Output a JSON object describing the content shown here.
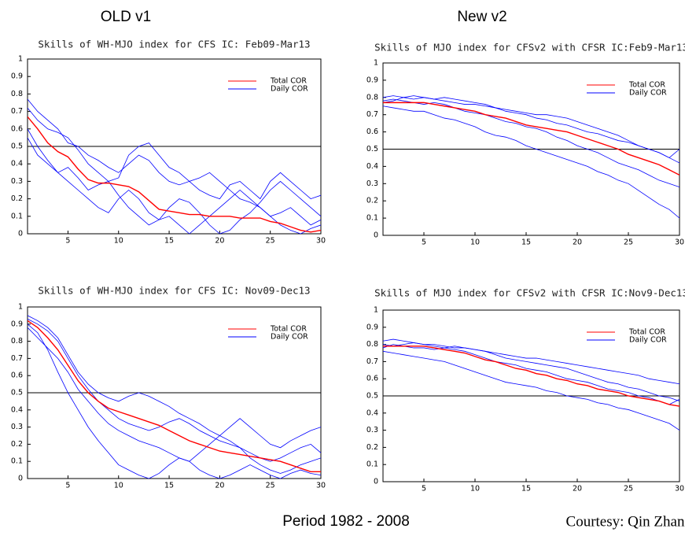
{
  "labels": {
    "left": "OLD v1",
    "right": "New v2",
    "period": "Period 1982 - 2008",
    "courtesy": "Courtesy: Qin Zhan"
  },
  "chart_data": [
    {
      "type": "line",
      "title": "Skills of WH-MJO index for CFS IC: Feb09-Mar13",
      "x": [
        1,
        2,
        3,
        4,
        5,
        6,
        7,
        8,
        9,
        10,
        11,
        12,
        13,
        14,
        15,
        16,
        17,
        18,
        19,
        20,
        21,
        22,
        23,
        24,
        25,
        26,
        27,
        28,
        29,
        30
      ],
      "xlim": [
        1,
        30
      ],
      "xticks": [
        5,
        10,
        15,
        20,
        25,
        30
      ],
      "ylim": [
        0,
        1
      ],
      "yticks": [
        0,
        0.1,
        0.2,
        0.3,
        0.4,
        0.5,
        0.6,
        0.7,
        0.8,
        0.9,
        1
      ],
      "reference_line": 0.5,
      "series": [
        {
          "name": "Total COR",
          "color": "#ff0000",
          "values": [
            0.67,
            0.6,
            0.52,
            0.47,
            0.44,
            0.37,
            0.31,
            0.29,
            0.29,
            0.28,
            0.27,
            0.24,
            0.19,
            0.14,
            0.13,
            0.12,
            0.11,
            0.11,
            0.1,
            0.1,
            0.1,
            0.09,
            0.09,
            0.09,
            0.07,
            0.06,
            0.04,
            0.02,
            0.01,
            0.02
          ]
        },
        {
          "name": "Daily COR",
          "color": "#0000ff",
          "values": [
            0.77,
            0.7,
            0.65,
            0.6,
            0.52,
            0.5,
            0.45,
            0.42,
            0.38,
            0.35,
            0.4,
            0.45,
            0.42,
            0.35,
            0.3,
            0.28,
            0.3,
            0.25,
            0.22,
            0.2,
            0.28,
            0.3,
            0.25,
            0.2,
            0.3,
            0.35,
            0.3,
            0.25,
            0.2,
            0.22
          ]
        },
        {
          "name": "Daily COR",
          "color": "#0000ff",
          "values": [
            0.6,
            0.5,
            0.42,
            0.35,
            0.3,
            0.25,
            0.2,
            0.15,
            0.12,
            0.2,
            0.25,
            0.2,
            0.12,
            0.08,
            0.1,
            0.05,
            0.0,
            0.05,
            0.1,
            0.15,
            0.2,
            0.25,
            0.2,
            0.15,
            0.1,
            0.05,
            0.02,
            0.0,
            0.03,
            0.05
          ]
        },
        {
          "name": "Daily COR",
          "color": "#0000ff",
          "values": [
            0.72,
            0.65,
            0.6,
            0.58,
            0.55,
            0.48,
            0.4,
            0.35,
            0.3,
            0.32,
            0.45,
            0.5,
            0.52,
            0.45,
            0.38,
            0.35,
            0.3,
            0.32,
            0.35,
            0.3,
            0.25,
            0.2,
            0.18,
            0.15,
            0.1,
            0.12,
            0.15,
            0.1,
            0.05,
            0.08
          ]
        },
        {
          "name": "Daily COR",
          "color": "#0000ff",
          "values": [
            0.55,
            0.45,
            0.4,
            0.35,
            0.38,
            0.32,
            0.25,
            0.28,
            0.3,
            0.22,
            0.15,
            0.1,
            0.05,
            0.08,
            0.15,
            0.2,
            0.18,
            0.12,
            0.05,
            0.0,
            0.02,
            0.08,
            0.12,
            0.18,
            0.25,
            0.3,
            0.25,
            0.2,
            0.15,
            0.1
          ]
        }
      ]
    },
    {
      "type": "line",
      "title": "Skills of MJO index for CFSv2 with CFSR IC:Feb9-Mar13",
      "x": [
        1,
        2,
        3,
        4,
        5,
        6,
        7,
        8,
        9,
        10,
        11,
        12,
        13,
        14,
        15,
        16,
        17,
        18,
        19,
        20,
        21,
        22,
        23,
        24,
        25,
        26,
        27,
        28,
        29,
        30
      ],
      "xlim": [
        1,
        30
      ],
      "xticks": [
        5,
        10,
        15,
        20,
        25,
        30
      ],
      "ylim": [
        0,
        1
      ],
      "yticks": [
        0,
        0.1,
        0.2,
        0.3,
        0.4,
        0.5,
        0.6,
        0.7,
        0.8,
        0.9,
        1
      ],
      "reference_line": 0.5,
      "series": [
        {
          "name": "Total COR",
          "color": "#ff0000",
          "values": [
            0.77,
            0.77,
            0.77,
            0.77,
            0.77,
            0.76,
            0.75,
            0.74,
            0.73,
            0.72,
            0.7,
            0.69,
            0.68,
            0.66,
            0.64,
            0.63,
            0.62,
            0.61,
            0.6,
            0.58,
            0.56,
            0.54,
            0.52,
            0.5,
            0.47,
            0.45,
            0.43,
            0.41,
            0.38,
            0.35
          ]
        },
        {
          "name": "Daily COR",
          "color": "#0000ff",
          "values": [
            0.8,
            0.81,
            0.8,
            0.79,
            0.8,
            0.79,
            0.78,
            0.77,
            0.76,
            0.76,
            0.75,
            0.74,
            0.73,
            0.72,
            0.71,
            0.7,
            0.7,
            0.69,
            0.68,
            0.66,
            0.64,
            0.62,
            0.6,
            0.58,
            0.55,
            0.52,
            0.5,
            0.48,
            0.45,
            0.42
          ]
        },
        {
          "name": "Daily COR",
          "color": "#0000ff",
          "values": [
            0.75,
            0.74,
            0.73,
            0.72,
            0.72,
            0.7,
            0.68,
            0.67,
            0.65,
            0.63,
            0.6,
            0.58,
            0.57,
            0.55,
            0.52,
            0.5,
            0.48,
            0.46,
            0.44,
            0.42,
            0.4,
            0.37,
            0.35,
            0.32,
            0.3,
            0.26,
            0.22,
            0.18,
            0.15,
            0.1
          ]
        },
        {
          "name": "Daily COR",
          "color": "#0000ff",
          "values": [
            0.78,
            0.79,
            0.78,
            0.77,
            0.76,
            0.77,
            0.76,
            0.74,
            0.72,
            0.71,
            0.7,
            0.68,
            0.66,
            0.65,
            0.63,
            0.62,
            0.6,
            0.57,
            0.55,
            0.52,
            0.5,
            0.48,
            0.45,
            0.42,
            0.4,
            0.38,
            0.35,
            0.32,
            0.3,
            0.28
          ]
        },
        {
          "name": "Daily COR",
          "color": "#0000ff",
          "values": [
            0.77,
            0.78,
            0.8,
            0.81,
            0.8,
            0.79,
            0.8,
            0.79,
            0.78,
            0.77,
            0.76,
            0.74,
            0.72,
            0.71,
            0.7,
            0.68,
            0.67,
            0.65,
            0.64,
            0.62,
            0.6,
            0.59,
            0.57,
            0.55,
            0.54,
            0.52,
            0.5,
            0.48,
            0.45,
            0.5
          ]
        }
      ]
    },
    {
      "type": "line",
      "title": "Skills of WH-MJO index for CFS IC: Nov09-Dec13",
      "x": [
        1,
        2,
        3,
        4,
        5,
        6,
        7,
        8,
        9,
        10,
        11,
        12,
        13,
        14,
        15,
        16,
        17,
        18,
        19,
        20,
        21,
        22,
        23,
        24,
        25,
        26,
        27,
        28,
        29,
        30
      ],
      "xlim": [
        1,
        30
      ],
      "xticks": [
        5,
        10,
        15,
        20,
        25,
        30
      ],
      "ylim": [
        0,
        1
      ],
      "yticks": [
        0,
        0.1,
        0.2,
        0.3,
        0.4,
        0.5,
        0.6,
        0.7,
        0.8,
        0.9,
        1
      ],
      "reference_line": 0.5,
      "series": [
        {
          "name": "Total COR",
          "color": "#ff0000",
          "values": [
            0.92,
            0.88,
            0.82,
            0.75,
            0.66,
            0.57,
            0.5,
            0.45,
            0.41,
            0.39,
            0.37,
            0.35,
            0.33,
            0.31,
            0.28,
            0.25,
            0.22,
            0.2,
            0.18,
            0.16,
            0.15,
            0.14,
            0.13,
            0.12,
            0.11,
            0.1,
            0.08,
            0.06,
            0.04,
            0.04
          ]
        },
        {
          "name": "Daily COR",
          "color": "#0000ff",
          "values": [
            0.95,
            0.92,
            0.88,
            0.82,
            0.72,
            0.62,
            0.55,
            0.5,
            0.47,
            0.45,
            0.48,
            0.5,
            0.48,
            0.45,
            0.42,
            0.38,
            0.35,
            0.32,
            0.28,
            0.25,
            0.3,
            0.35,
            0.3,
            0.25,
            0.2,
            0.18,
            0.22,
            0.25,
            0.28,
            0.3
          ]
        },
        {
          "name": "Daily COR",
          "color": "#0000ff",
          "values": [
            0.9,
            0.85,
            0.75,
            0.62,
            0.5,
            0.4,
            0.3,
            0.22,
            0.15,
            0.08,
            0.05,
            0.02,
            0.0,
            0.03,
            0.08,
            0.12,
            0.1,
            0.05,
            0.02,
            0.0,
            0.02,
            0.05,
            0.08,
            0.05,
            0.02,
            0.0,
            0.03,
            0.05,
            0.03,
            0.02
          ]
        },
        {
          "name": "Daily COR",
          "color": "#0000ff",
          "values": [
            0.93,
            0.9,
            0.86,
            0.8,
            0.7,
            0.6,
            0.52,
            0.45,
            0.4,
            0.35,
            0.32,
            0.3,
            0.28,
            0.3,
            0.33,
            0.35,
            0.32,
            0.28,
            0.25,
            0.22,
            0.2,
            0.18,
            0.15,
            0.12,
            0.1,
            0.12,
            0.15,
            0.18,
            0.2,
            0.15
          ]
        },
        {
          "name": "Daily COR",
          "color": "#0000ff",
          "values": [
            0.88,
            0.82,
            0.76,
            0.7,
            0.62,
            0.52,
            0.45,
            0.38,
            0.32,
            0.28,
            0.25,
            0.22,
            0.2,
            0.18,
            0.15,
            0.12,
            0.1,
            0.15,
            0.2,
            0.25,
            0.22,
            0.18,
            0.12,
            0.08,
            0.05,
            0.03,
            0.05,
            0.08,
            0.1,
            0.12
          ]
        }
      ]
    },
    {
      "type": "line",
      "title": "Skills of MJO index for CFSv2 with CFSR IC:Nov9-Dec13",
      "x": [
        1,
        2,
        3,
        4,
        5,
        6,
        7,
        8,
        9,
        10,
        11,
        12,
        13,
        14,
        15,
        16,
        17,
        18,
        19,
        20,
        21,
        22,
        23,
        24,
        25,
        26,
        27,
        28,
        29,
        30
      ],
      "xlim": [
        1,
        30
      ],
      "xticks": [
        5,
        10,
        15,
        20,
        25,
        30
      ],
      "ylim": [
        0,
        1
      ],
      "yticks": [
        0,
        0.1,
        0.2,
        0.3,
        0.4,
        0.5,
        0.6,
        0.7,
        0.8,
        0.9,
        1
      ],
      "reference_line": 0.5,
      "series": [
        {
          "name": "Total COR",
          "color": "#ff0000",
          "values": [
            0.79,
            0.79,
            0.79,
            0.79,
            0.79,
            0.78,
            0.77,
            0.76,
            0.75,
            0.73,
            0.71,
            0.7,
            0.68,
            0.66,
            0.65,
            0.63,
            0.62,
            0.6,
            0.59,
            0.57,
            0.56,
            0.54,
            0.53,
            0.52,
            0.5,
            0.49,
            0.48,
            0.47,
            0.45,
            0.44
          ]
        },
        {
          "name": "Daily COR",
          "color": "#0000ff",
          "values": [
            0.82,
            0.83,
            0.82,
            0.81,
            0.8,
            0.8,
            0.79,
            0.78,
            0.78,
            0.77,
            0.76,
            0.75,
            0.74,
            0.73,
            0.72,
            0.72,
            0.71,
            0.7,
            0.69,
            0.68,
            0.67,
            0.66,
            0.65,
            0.64,
            0.63,
            0.62,
            0.6,
            0.59,
            0.58,
            0.57
          ]
        },
        {
          "name": "Daily COR",
          "color": "#0000ff",
          "values": [
            0.76,
            0.75,
            0.74,
            0.73,
            0.72,
            0.71,
            0.7,
            0.68,
            0.66,
            0.64,
            0.62,
            0.6,
            0.58,
            0.57,
            0.56,
            0.55,
            0.53,
            0.52,
            0.5,
            0.49,
            0.48,
            0.46,
            0.45,
            0.43,
            0.42,
            0.4,
            0.38,
            0.36,
            0.34,
            0.3
          ]
        },
        {
          "name": "Daily COR",
          "color": "#0000ff",
          "values": [
            0.8,
            0.79,
            0.8,
            0.81,
            0.8,
            0.79,
            0.78,
            0.77,
            0.76,
            0.74,
            0.72,
            0.7,
            0.69,
            0.68,
            0.66,
            0.65,
            0.64,
            0.62,
            0.6,
            0.59,
            0.58,
            0.56,
            0.54,
            0.53,
            0.52,
            0.5,
            0.49,
            0.47,
            0.45,
            0.48
          ]
        },
        {
          "name": "Daily COR",
          "color": "#0000ff",
          "values": [
            0.78,
            0.8,
            0.79,
            0.78,
            0.78,
            0.77,
            0.78,
            0.79,
            0.78,
            0.77,
            0.76,
            0.74,
            0.72,
            0.71,
            0.7,
            0.69,
            0.68,
            0.67,
            0.66,
            0.64,
            0.62,
            0.6,
            0.58,
            0.57,
            0.55,
            0.54,
            0.52,
            0.5,
            0.49,
            0.47
          ]
        }
      ]
    }
  ]
}
